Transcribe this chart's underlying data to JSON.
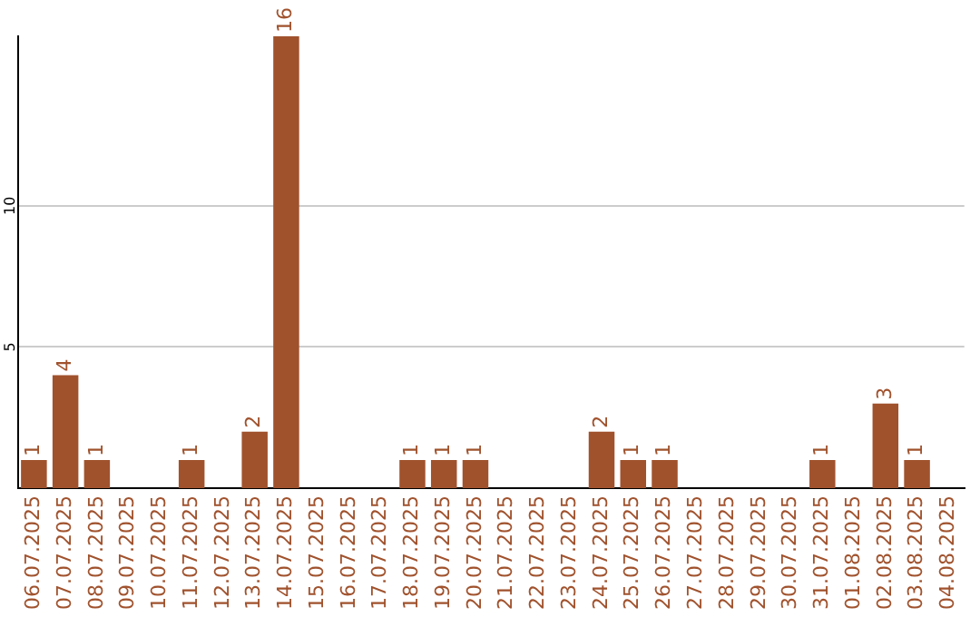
{
  "chart_data": {
    "type": "bar",
    "categories": [
      "06.07.2025",
      "07.07.2025",
      "08.07.2025",
      "09.07.2025",
      "10.07.2025",
      "11.07.2025",
      "12.07.2025",
      "13.07.2025",
      "14.07.2025",
      "15.07.2025",
      "16.07.2025",
      "17.07.2025",
      "18.07.2025",
      "19.07.2025",
      "20.07.2025",
      "21.07.2025",
      "22.07.2025",
      "23.07.2025",
      "24.07.2025",
      "25.07.2025",
      "26.07.2025",
      "27.07.2025",
      "28.07.2025",
      "29.07.2025",
      "30.07.2025",
      "31.07.2025",
      "01.08.2025",
      "02.08.2025",
      "03.08.2025",
      "04.08.2025"
    ],
    "values": [
      1,
      4,
      1,
      0,
      0,
      1,
      0,
      2,
      16,
      0,
      0,
      0,
      1,
      1,
      1,
      0,
      0,
      0,
      2,
      1,
      1,
      0,
      0,
      0,
      0,
      1,
      0,
      3,
      1,
      0
    ],
    "value_labels": [
      "1",
      "4",
      "1",
      null,
      null,
      "1",
      null,
      "2",
      "16",
      null,
      null,
      null,
      "1",
      "1",
      "1",
      null,
      null,
      null,
      "2",
      "1",
      "1",
      null,
      null,
      null,
      null,
      "1",
      null,
      "3",
      "1",
      null
    ],
    "color": "#a0522d",
    "ylim": [
      0,
      16
    ],
    "yticks": [
      5,
      10
    ],
    "grid": "y",
    "legend": false
  }
}
